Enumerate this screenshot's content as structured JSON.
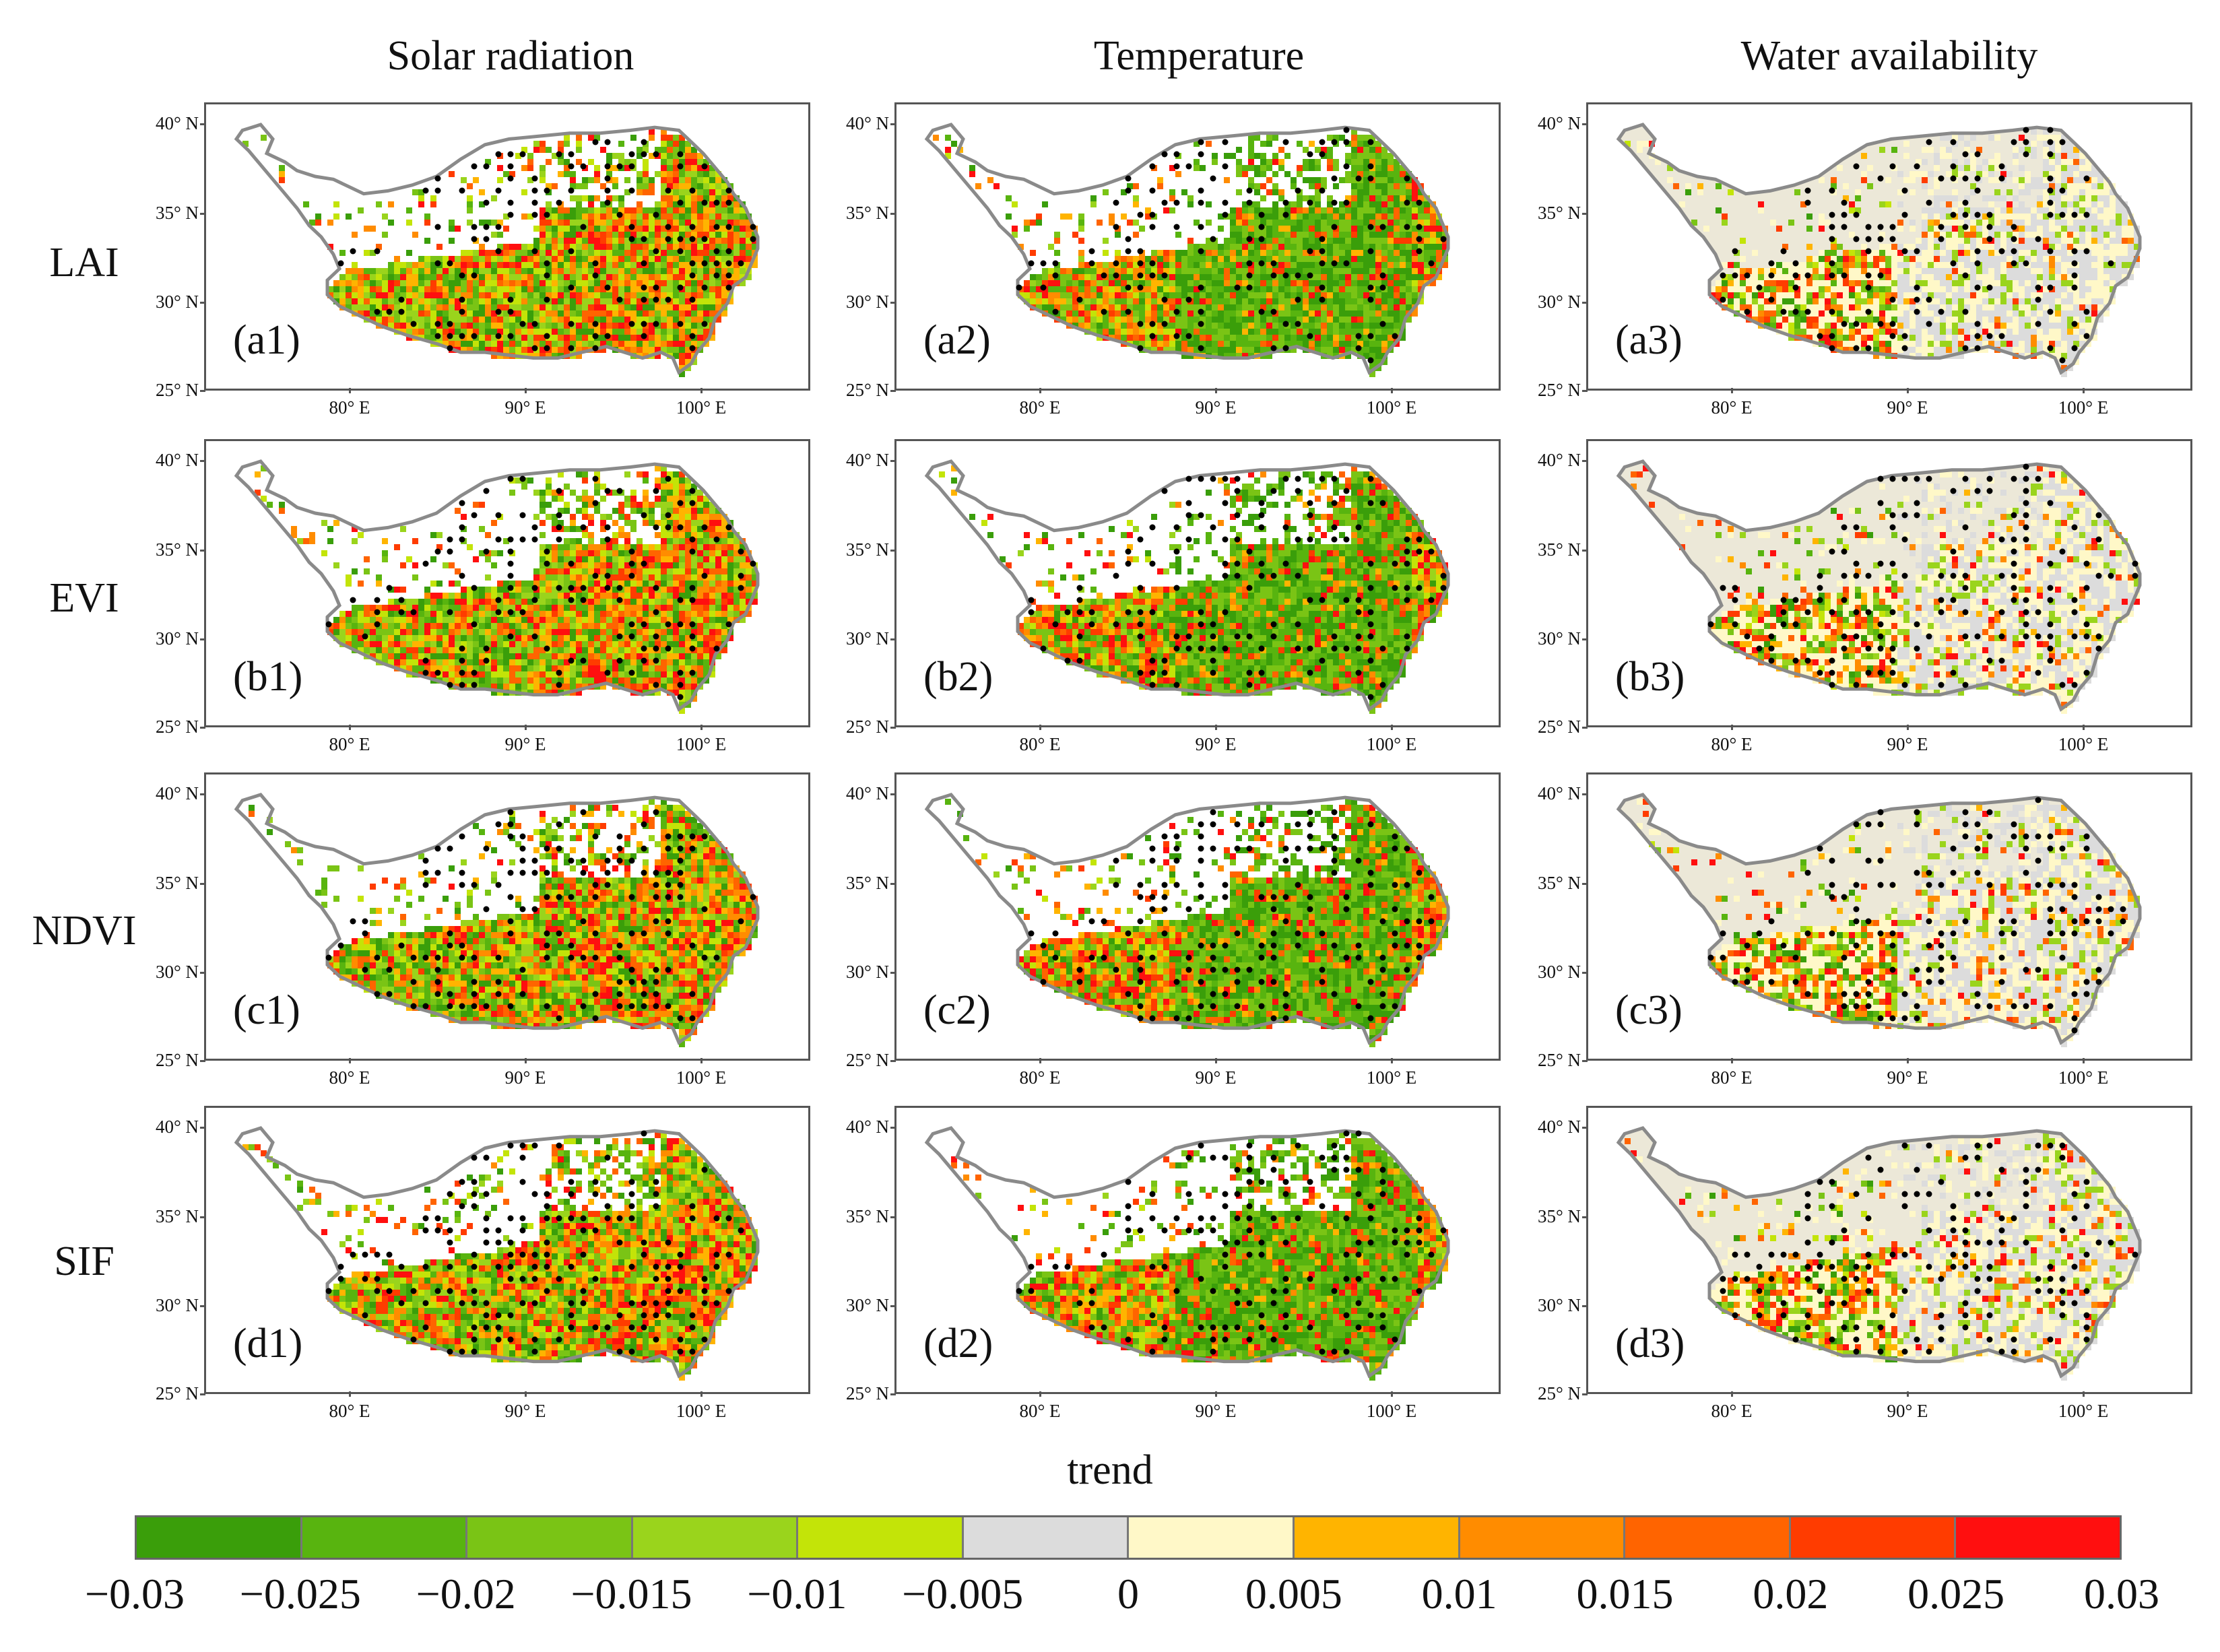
{
  "columns": [
    "Solar radiation",
    "Temperature",
    "Water availability"
  ],
  "rows": [
    "LAI",
    "EVI",
    "NDVI",
    "SIF"
  ],
  "panel_labels": [
    [
      "(a1)",
      "(a2)",
      "(a3)"
    ],
    [
      "(b1)",
      "(b2)",
      "(b3)"
    ],
    [
      "(c1)",
      "(c2)",
      "(c3)"
    ],
    [
      "(d1)",
      "(d2)",
      "(d3)"
    ]
  ],
  "lat_ticks": [
    "40° N",
    "35° N",
    "30° N",
    "25° N"
  ],
  "lon_ticks": [
    "80° E",
    "90° E",
    "100° E"
  ],
  "colorbar": {
    "title": "trend",
    "ticks": [
      "−0.03",
      "−0.025",
      "−0.02",
      "−0.015",
      "−0.01",
      "−0.005",
      "0",
      "0.005",
      "0.01",
      "0.015",
      "0.02",
      "0.025",
      "0.03"
    ],
    "colors": [
      "#3a9e0a",
      "#58b40f",
      "#7ac415",
      "#9ad41c",
      "#c3e408",
      "#dcdcdc",
      "#fff8c8",
      "#ffb400",
      "#ff8c00",
      "#ff6400",
      "#ff3c00",
      "#ff0f0f"
    ]
  },
  "legend_colors": {
    "green": "#5ab414",
    "red": "#ff3c00",
    "grey": "#d2d2d2",
    "outline": "#8a8a8a",
    "dot": "#000000"
  }
}
